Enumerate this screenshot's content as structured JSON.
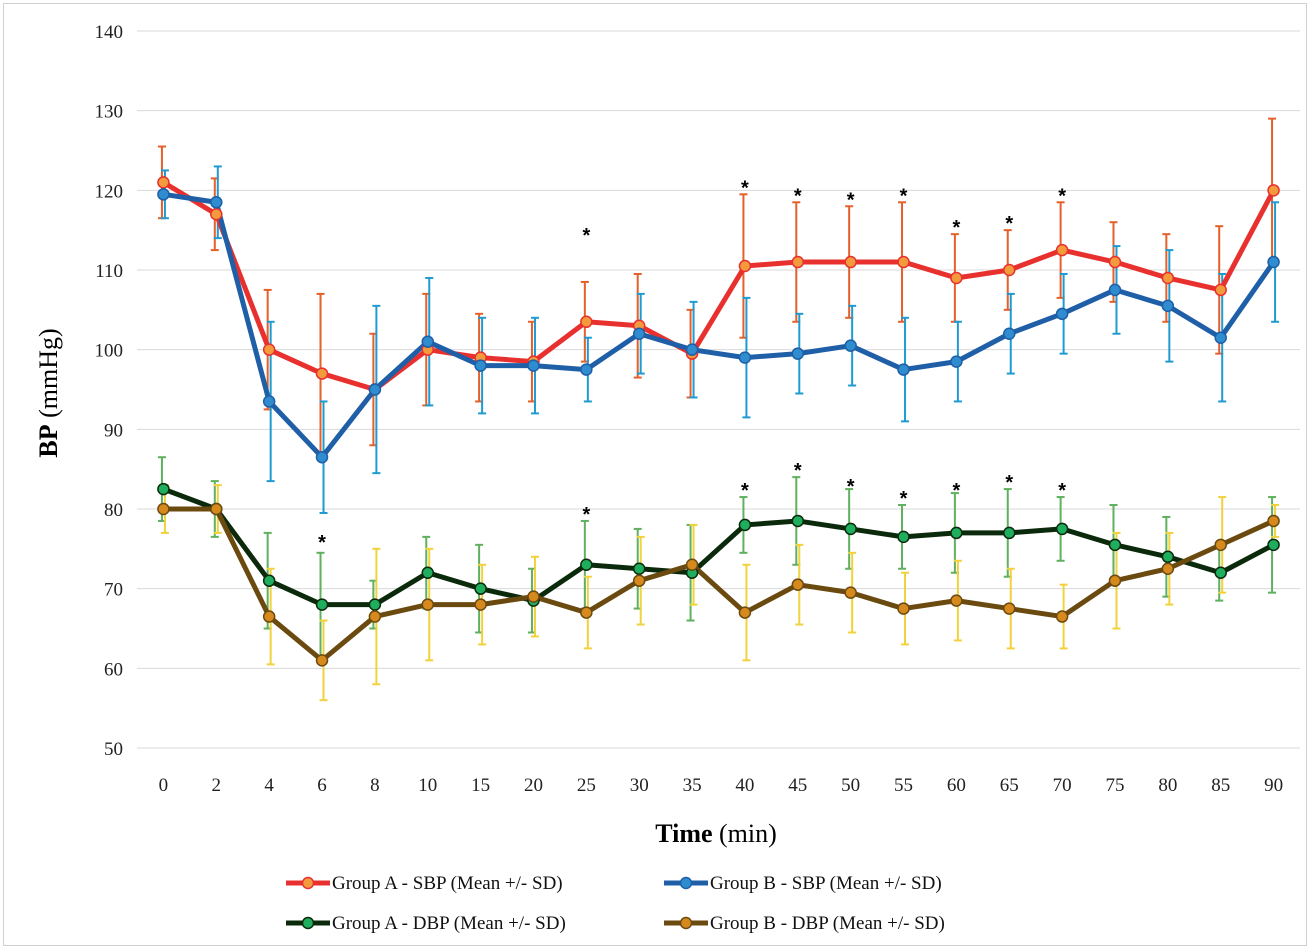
{
  "chart_data": {
    "type": "line",
    "title": "",
    "ylabel_bold": "BP",
    "ylabel_rest": "(mmHg)",
    "xlabel_bold": "Time",
    "xlabel_rest": "(min)",
    "categories": [
      "0",
      "2",
      "4",
      "6",
      "8",
      "10",
      "15",
      "20",
      "25",
      "30",
      "35",
      "40",
      "45",
      "50",
      "55",
      "60",
      "65",
      "70",
      "75",
      "80",
      "85",
      "90"
    ],
    "ylim": [
      50,
      140
    ],
    "yticks": [
      50,
      60,
      70,
      80,
      90,
      100,
      110,
      120,
      130,
      140
    ],
    "grid": "horizontal",
    "legend_position": "bottom",
    "series": [
      {
        "name": "Group A - SBP (Mean +/- SD)",
        "line_color": "#e8312f",
        "marker_color": "#f39a3c",
        "error_color": "#e5602a",
        "values": [
          121,
          117,
          100,
          97,
          95,
          100,
          99,
          98.5,
          103.5,
          103,
          99.5,
          110.5,
          111,
          111,
          111,
          109,
          110,
          112.5,
          111,
          109,
          107.5,
          120
        ],
        "sd": [
          4.5,
          4.5,
          7.5,
          10,
          7,
          7,
          5.5,
          5,
          5,
          6.5,
          5.5,
          9,
          7.5,
          7,
          7.5,
          5.5,
          5,
          6,
          5,
          5.5,
          8,
          9
        ]
      },
      {
        "name": "Group B - SBP (Mean +/- SD)",
        "line_color": "#1f5fa8",
        "marker_color": "#2f8ccf",
        "error_color": "#1f9bd0",
        "values": [
          119.5,
          118.5,
          93.5,
          86.5,
          95,
          101,
          98,
          98,
          97.5,
          102,
          100,
          99,
          99.5,
          100.5,
          97.5,
          98.5,
          102,
          104.5,
          107.5,
          105.5,
          101.5,
          111
        ],
        "sd": [
          3,
          4.5,
          10,
          7,
          10.5,
          8,
          6,
          6,
          4,
          5,
          6,
          7.5,
          5,
          5,
          6.5,
          5,
          5,
          5,
          5.5,
          7,
          8,
          7.5
        ]
      },
      {
        "name": "Group A - DBP (Mean +/- SD)",
        "line_color": "#0b2a0b",
        "marker_color": "#1fae5e",
        "error_color": "#5fb05f",
        "values": [
          82.5,
          80,
          71,
          68,
          68,
          72,
          70,
          68.5,
          73,
          72.5,
          72,
          78,
          78.5,
          77.5,
          76.5,
          77,
          77,
          77.5,
          75.5,
          74,
          72,
          75.5
        ],
        "sd": [
          4,
          3.5,
          6,
          6.5,
          3,
          4.5,
          5.5,
          4,
          5.5,
          5,
          6,
          3.5,
          5.5,
          5,
          4,
          5,
          5.5,
          4,
          5,
          5,
          3.5,
          6
        ]
      },
      {
        "name": "Group B - DBP (Mean +/- SD)",
        "line_color": "#6b4a10",
        "marker_color": "#d68a1d",
        "error_color": "#f2d23c",
        "values": [
          80,
          80,
          66.5,
          61,
          66.5,
          68,
          68,
          69,
          67,
          71,
          73,
          67,
          70.5,
          69.5,
          67.5,
          68.5,
          67.5,
          66.5,
          71,
          72.5,
          75.5,
          78.5
        ],
        "sd": [
          3,
          3,
          6,
          5,
          8.5,
          7,
          5,
          5,
          4.5,
          5.5,
          5,
          6,
          5,
          5,
          4.5,
          5,
          5,
          4,
          6,
          4.5,
          6,
          2
        ]
      }
    ],
    "annotations": [
      {
        "text": "*",
        "category": "25",
        "value": 115
      },
      {
        "text": "*",
        "category": "40",
        "value": 121
      },
      {
        "text": "*",
        "category": "45",
        "value": 120
      },
      {
        "text": "*",
        "category": "50",
        "value": 119.5
      },
      {
        "text": "*",
        "category": "55",
        "value": 120
      },
      {
        "text": "*",
        "category": "60",
        "value": 116
      },
      {
        "text": "*",
        "category": "65",
        "value": 116.5
      },
      {
        "text": "*",
        "category": "70",
        "value": 120
      },
      {
        "text": "*",
        "category": "6",
        "value": 76.5
      },
      {
        "text": "*",
        "category": "25",
        "value": 80
      },
      {
        "text": "*",
        "category": "40",
        "value": 83
      },
      {
        "text": "*",
        "category": "45",
        "value": 85.5
      },
      {
        "text": "*",
        "category": "50",
        "value": 83.5
      },
      {
        "text": "*",
        "category": "55",
        "value": 82
      },
      {
        "text": "*",
        "category": "60",
        "value": 83
      },
      {
        "text": "*",
        "category": "65",
        "value": 84
      },
      {
        "text": "*",
        "category": "70",
        "value": 83
      }
    ]
  }
}
